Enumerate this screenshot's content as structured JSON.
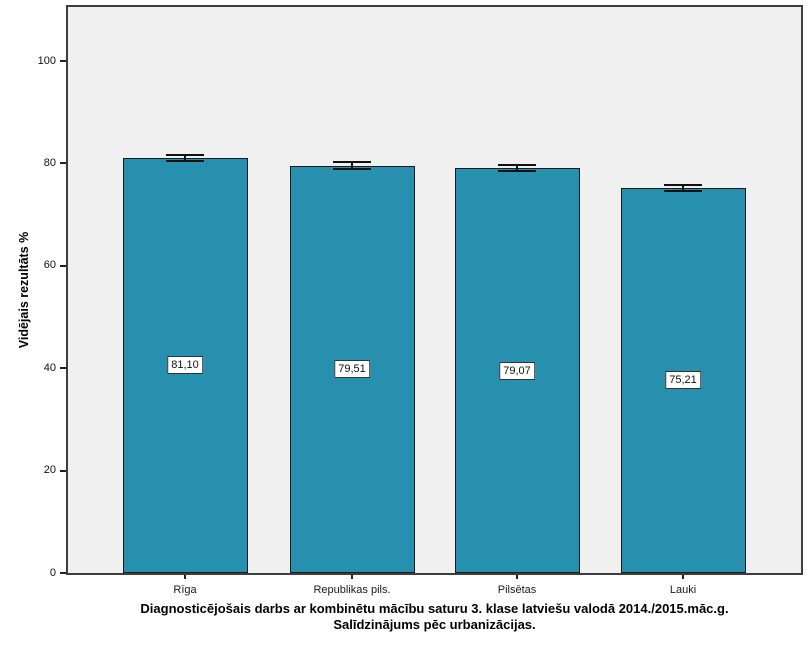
{
  "chart_data": {
    "type": "bar",
    "title": "Diagnosticējošais darbs ar kombinētu mācību saturu 3. klase latviešu valodā 2014./2015.māc.g.",
    "subtitle": "Salīdzinājums pēc urbanizācijas.",
    "ylabel": "Vidējais rezultāts %",
    "xlabel": "",
    "categories": [
      "Rīga",
      "Republikas pils.",
      "Pilsētas",
      "Lauki"
    ],
    "values": [
      81.1,
      79.51,
      79.07,
      75.21
    ],
    "value_labels": [
      "81,10",
      "79,51",
      "79,07",
      "75,21"
    ],
    "errors": [
      0.6,
      0.7,
      0.55,
      0.55
    ],
    "yticks": [
      0,
      20,
      40,
      60,
      80,
      100
    ],
    "ytick_labels": [
      "0",
      "20",
      "40",
      "60",
      "80",
      "100"
    ],
    "ylim": [
      0,
      111
    ],
    "grid": false,
    "legend": "none",
    "colors": {
      "bar_fill": "#2690AE",
      "bar_border": "#1a1a1a",
      "plot_background": "#F0F0F0",
      "frame_border": "#3e3e3e",
      "error_bar": "#111111",
      "text": "#000000"
    }
  }
}
